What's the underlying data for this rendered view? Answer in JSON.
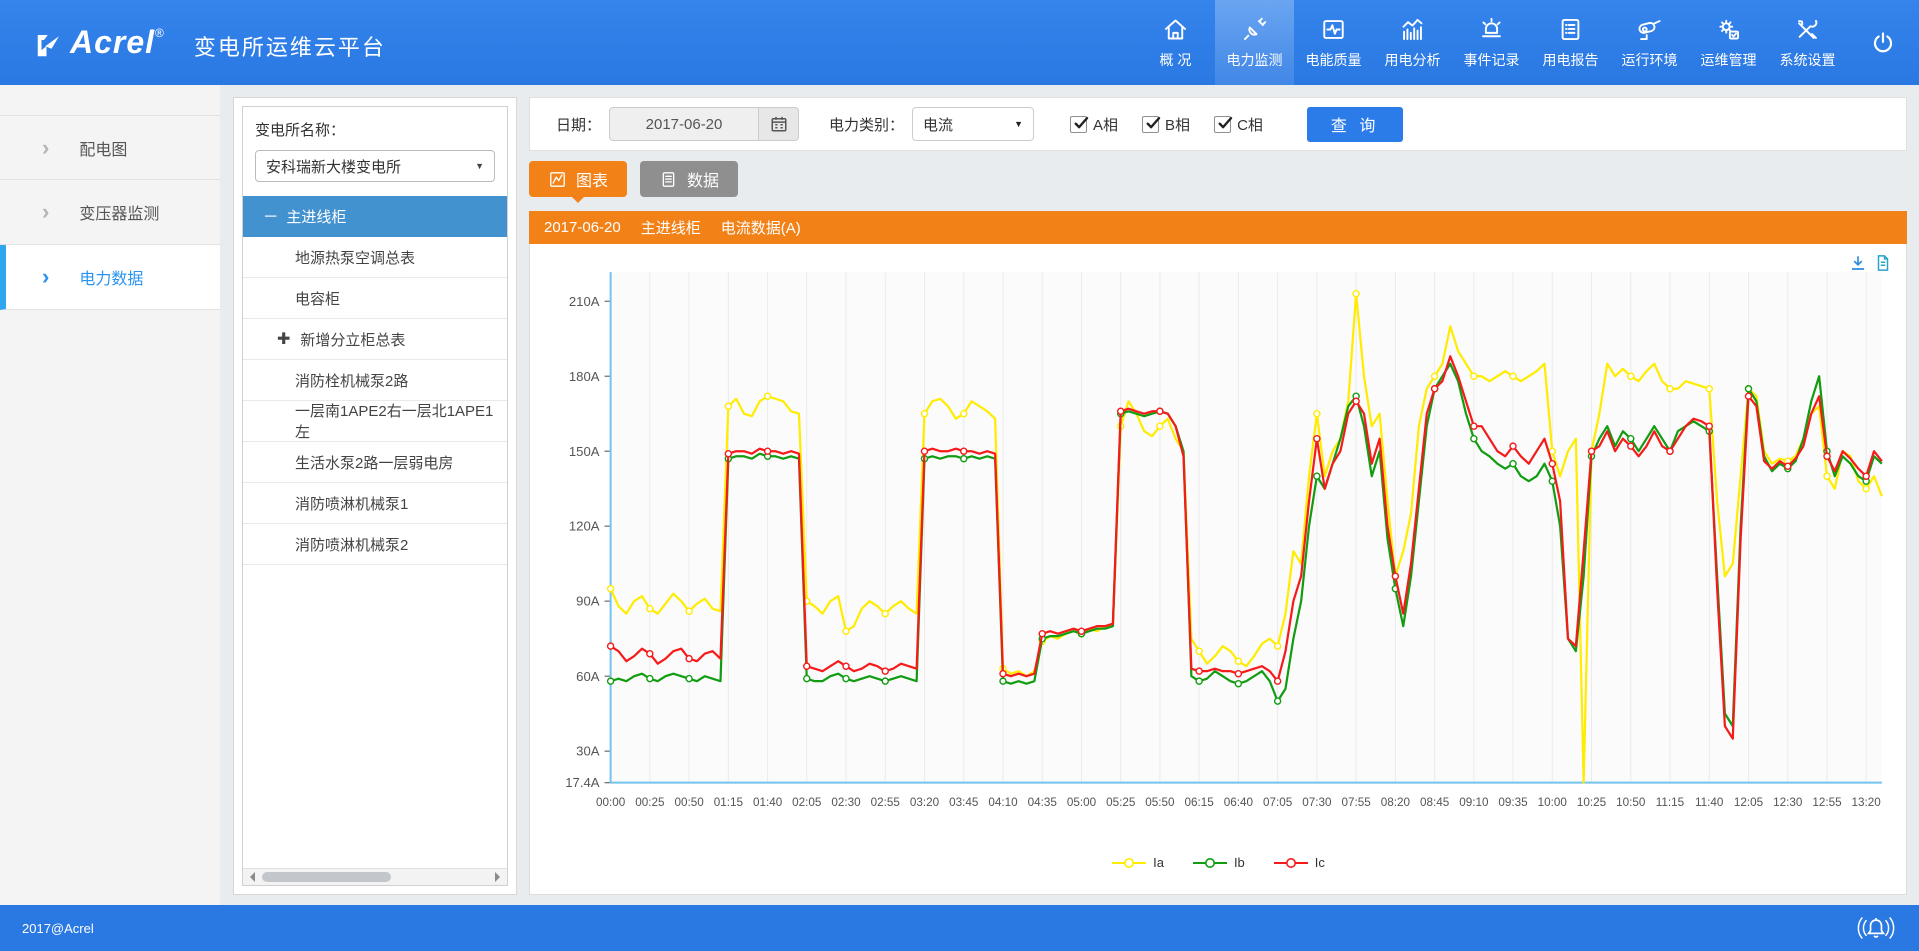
{
  "header": {
    "logo_text": "Acrel",
    "logo_reg": "®",
    "app_title": "变电所运维云平台",
    "nav": [
      {
        "key": "overview",
        "label": "概 况",
        "icon": "home-icon",
        "active": false
      },
      {
        "key": "power-monitoring",
        "label": "电力监测",
        "icon": "power-monitor-icon",
        "active": true
      },
      {
        "key": "power-quality",
        "label": "电能质量",
        "icon": "power-quality-icon",
        "active": false
      },
      {
        "key": "energy-analysis",
        "label": "用电分析",
        "icon": "energy-analysis-icon",
        "active": false
      },
      {
        "key": "event-log",
        "label": "事件记录",
        "icon": "event-log-icon",
        "active": false
      },
      {
        "key": "energy-report",
        "label": "用电报告",
        "icon": "report-icon",
        "active": false
      },
      {
        "key": "environment",
        "label": "运行环境",
        "icon": "environment-icon",
        "active": false
      },
      {
        "key": "maintenance",
        "label": "运维管理",
        "icon": "maintenance-icon",
        "active": false
      },
      {
        "key": "settings",
        "label": "系统设置",
        "icon": "settings-icon",
        "active": false
      }
    ]
  },
  "sidebar": {
    "items": [
      {
        "key": "distribution-diagram",
        "label": "配电图",
        "active": false
      },
      {
        "key": "transformer-monitoring",
        "label": "变压器监测",
        "active": false
      },
      {
        "key": "power-data",
        "label": "电力数据",
        "active": true
      }
    ]
  },
  "tree_panel": {
    "label": "变电所名称：",
    "selected_station": "安科瑞新大楼变电所",
    "nodes": [
      {
        "label": "主进线柜",
        "type": "parent",
        "icon": "minus-icon",
        "selected": true
      },
      {
        "label": "地源热泵空调总表",
        "type": "child",
        "selected": false
      },
      {
        "label": "电容柜",
        "type": "child",
        "selected": false
      },
      {
        "label": "新增分立柜总表",
        "type": "parent2",
        "icon": "plus-icon",
        "selected": false
      },
      {
        "label": "消防栓机械泵2路",
        "type": "child",
        "selected": false
      },
      {
        "label": "一层南1APE2右一层北1APE1左",
        "type": "child",
        "selected": false
      },
      {
        "label": "生活水泵2路一层弱电房",
        "type": "child",
        "selected": false
      },
      {
        "label": "消防喷淋机械泵1",
        "type": "child",
        "selected": false
      },
      {
        "label": "消防喷淋机械泵2",
        "type": "child",
        "selected": false
      }
    ]
  },
  "toolbar": {
    "date_label": "日期：",
    "date_value": "2017-06-20",
    "category_label": "电力类别：",
    "category_value": "电流",
    "phases": [
      {
        "key": "phase-a",
        "label": "A相",
        "checked": true
      },
      {
        "key": "phase-b",
        "label": "B相",
        "checked": true
      },
      {
        "key": "phase-c",
        "label": "C相",
        "checked": true
      }
    ],
    "query_label": "查 询"
  },
  "tabs": [
    {
      "key": "chart",
      "label": "图表",
      "icon": "line-chart-icon",
      "active": true
    },
    {
      "key": "data",
      "label": "数据",
      "icon": "data-table-icon",
      "active": false
    }
  ],
  "info_bar": {
    "date": "2017-06-20",
    "device": "主进线柜",
    "metric": "电流数据(A)"
  },
  "footer": {
    "copyright": "2017@Acrel"
  },
  "colors": {
    "header_blue": "#2a78e2",
    "active_nav_blue": "#4a90ee",
    "accent_orange": "#f28118",
    "tree_selected_blue": "#4392d0",
    "query_button_blue": "#2b7ce9",
    "axis_blue": "#74c3ee"
  },
  "chart_data": {
    "type": "line",
    "title": "2017-06-20 主进线柜 电流数据(A)",
    "x_start": "00:00",
    "x_end": "13:30",
    "x_interval_minutes": 5,
    "x_total_minutes": 810,
    "x_tick_step_minutes": 25,
    "x_tick_labels": [
      "00:00",
      "00:25",
      "00:50",
      "01:15",
      "01:40",
      "02:05",
      "02:30",
      "02:55",
      "03:20",
      "03:45",
      "04:10",
      "04:35",
      "05:00",
      "05:25",
      "05:50",
      "06:15",
      "06:40",
      "07:05",
      "07:30",
      "07:55",
      "08:20",
      "08:45",
      "09:10",
      "09:35",
      "10:00",
      "10:25",
      "10:50",
      "11:15",
      "11:40",
      "12:05",
      "12:30",
      "12:55",
      "13:20"
    ],
    "ylim": [
      17.4,
      216
    ],
    "y_tick_values": [
      210,
      180,
      150,
      120,
      90,
      60,
      30,
      17.4
    ],
    "y_tick_labels": [
      "210A",
      "180A",
      "150A",
      "120A",
      "90A",
      "60A",
      "30A",
      "17.4A"
    ],
    "grid": "vertical",
    "legend_position": "bottom",
    "series": [
      {
        "name": "Ia",
        "color": "#ffec00",
        "values": [
          95,
          88,
          85,
          90,
          92,
          87,
          85,
          89,
          93,
          90,
          86,
          89,
          91,
          87,
          86,
          168,
          171,
          165,
          164,
          170,
          172,
          171,
          170,
          166,
          165,
          90,
          88,
          85,
          90,
          92,
          78,
          80,
          87,
          90,
          88,
          85,
          88,
          90,
          87,
          85,
          165,
          170,
          171,
          168,
          163,
          165,
          170,
          168,
          166,
          163,
          63,
          61,
          62,
          60,
          62,
          74,
          76,
          75,
          77,
          78,
          77,
          79,
          78,
          80,
          80,
          160,
          170,
          165,
          158,
          156,
          160,
          163,
          155,
          150,
          75,
          70,
          65,
          68,
          72,
          70,
          66,
          64,
          68,
          73,
          75,
          72,
          85,
          110,
          105,
          140,
          165,
          140,
          150,
          155,
          170,
          213,
          180,
          160,
          165,
          130,
          100,
          110,
          125,
          160,
          175,
          180,
          185,
          200,
          190,
          185,
          180,
          180,
          178,
          180,
          182,
          180,
          178,
          180,
          182,
          185,
          150,
          140,
          150,
          155,
          17.4,
          150,
          165,
          185,
          180,
          183,
          180,
          178,
          182,
          185,
          178,
          175,
          175,
          178,
          177,
          176,
          175,
          130,
          100,
          105,
          140,
          175,
          172,
          150,
          145,
          147,
          146,
          148,
          155,
          165,
          168,
          140,
          135,
          150,
          148,
          138,
          135,
          140,
          132
        ]
      },
      {
        "name": "Ib",
        "color": "#119c11",
        "values": [
          58,
          59,
          58,
          60,
          61,
          59,
          58,
          60,
          61,
          60,
          59,
          58,
          60,
          59,
          58,
          147,
          148,
          148,
          147,
          149,
          148,
          148,
          147,
          148,
          147,
          59,
          58,
          58,
          60,
          61,
          59,
          58,
          59,
          60,
          59,
          58,
          59,
          60,
          59,
          58,
          147,
          148,
          147,
          148,
          148,
          147,
          148,
          147,
          148,
          147,
          58,
          57,
          58,
          57,
          58,
          75,
          76,
          76,
          77,
          78,
          77,
          78,
          79,
          79,
          80,
          165,
          166,
          165,
          164,
          165,
          166,
          165,
          160,
          150,
          60,
          58,
          59,
          62,
          60,
          58,
          57,
          58,
          60,
          62,
          58,
          50,
          55,
          75,
          90,
          120,
          140,
          135,
          145,
          155,
          168,
          172,
          160,
          140,
          150,
          115,
          95,
          80,
          100,
          130,
          160,
          175,
          180,
          185,
          178,
          165,
          155,
          150,
          148,
          145,
          143,
          145,
          140,
          138,
          140,
          145,
          138,
          120,
          75,
          70,
          100,
          148,
          155,
          160,
          152,
          158,
          155,
          150,
          155,
          160,
          155,
          150,
          158,
          160,
          162,
          160,
          158,
          100,
          45,
          40,
          120,
          175,
          170,
          148,
          142,
          145,
          143,
          146,
          155,
          170,
          180,
          150,
          140,
          148,
          145,
          140,
          138,
          148,
          145
        ]
      },
      {
        "name": "Ic",
        "color": "#f51b1b",
        "values": [
          72,
          70,
          66,
          68,
          71,
          69,
          65,
          67,
          70,
          71,
          67,
          66,
          69,
          70,
          67,
          149,
          150,
          150,
          149,
          151,
          150,
          150,
          149,
          150,
          149,
          64,
          63,
          62,
          64,
          66,
          64,
          62,
          63,
          65,
          64,
          62,
          63,
          65,
          64,
          63,
          150,
          151,
          150,
          150,
          151,
          150,
          150,
          149,
          150,
          149,
          61,
          60,
          61,
          60,
          61,
          77,
          78,
          77,
          78,
          79,
          78,
          79,
          80,
          80,
          81,
          166,
          167,
          166,
          165,
          166,
          166,
          165,
          160,
          148,
          63,
          62,
          62,
          63,
          62,
          62,
          61,
          62,
          63,
          64,
          62,
          58,
          70,
          90,
          100,
          130,
          155,
          135,
          145,
          150,
          165,
          170,
          165,
          145,
          155,
          120,
          100,
          85,
          105,
          135,
          165,
          175,
          178,
          188,
          180,
          170,
          160,
          160,
          155,
          150,
          148,
          152,
          148,
          145,
          150,
          155,
          145,
          130,
          75,
          72,
          110,
          150,
          152,
          158,
          150,
          155,
          152,
          148,
          152,
          158,
          152,
          150,
          155,
          160,
          163,
          162,
          160,
          95,
          40,
          35,
          115,
          172,
          168,
          146,
          143,
          146,
          144,
          147,
          152,
          165,
          172,
          148,
          142,
          150,
          147,
          143,
          140,
          150,
          146
        ]
      }
    ]
  }
}
